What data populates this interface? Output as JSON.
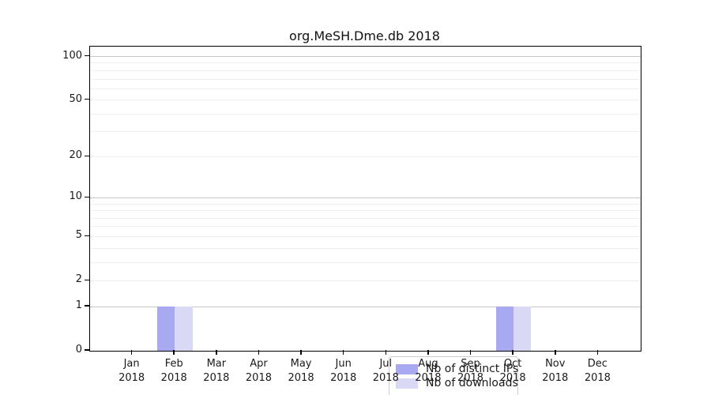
{
  "window": {
    "background_color": "#ffffff"
  },
  "chart_data": {
    "type": "bar",
    "title": "org.MeSH.Dme.db 2018",
    "xlabel": "",
    "ylabel": "",
    "categories": [
      "Jan",
      "Feb",
      "Mar",
      "Apr",
      "May",
      "Jun",
      "Jul",
      "Aug",
      "Sep",
      "Oct",
      "Nov",
      "Dec"
    ],
    "category_year": "2018",
    "series": [
      {
        "name": "Nb of distinct IPs",
        "color": "#a9a9f1",
        "values": [
          0,
          1,
          0,
          0,
          0,
          0,
          0,
          0,
          0,
          1,
          0,
          0
        ]
      },
      {
        "name": "Nb of downloads",
        "color": "#d9d9f6",
        "values": [
          0,
          1,
          0,
          0,
          0,
          0,
          0,
          0,
          0,
          1,
          0,
          0
        ]
      }
    ],
    "y_axis": {
      "scale": "log1p",
      "tick_values": [
        0,
        1,
        2,
        5,
        10,
        20,
        50,
        100
      ],
      "range": [
        0,
        117
      ],
      "gridlines_major": [
        1,
        10,
        100
      ],
      "gridlines_minor": [
        2,
        3,
        4,
        5,
        6,
        7,
        8,
        9,
        20,
        30,
        40,
        50,
        60,
        70,
        80,
        90
      ]
    },
    "legend": {
      "position": "bottom-center",
      "entries": [
        "Nb of distinct IPs",
        "Nb of downloads"
      ]
    },
    "colors": {
      "axis": "#000000",
      "grid_major": "#c6c6c6",
      "grid_minor": "#efefef",
      "text": "#1a1a1a",
      "legend_border": "#cccccc"
    }
  }
}
